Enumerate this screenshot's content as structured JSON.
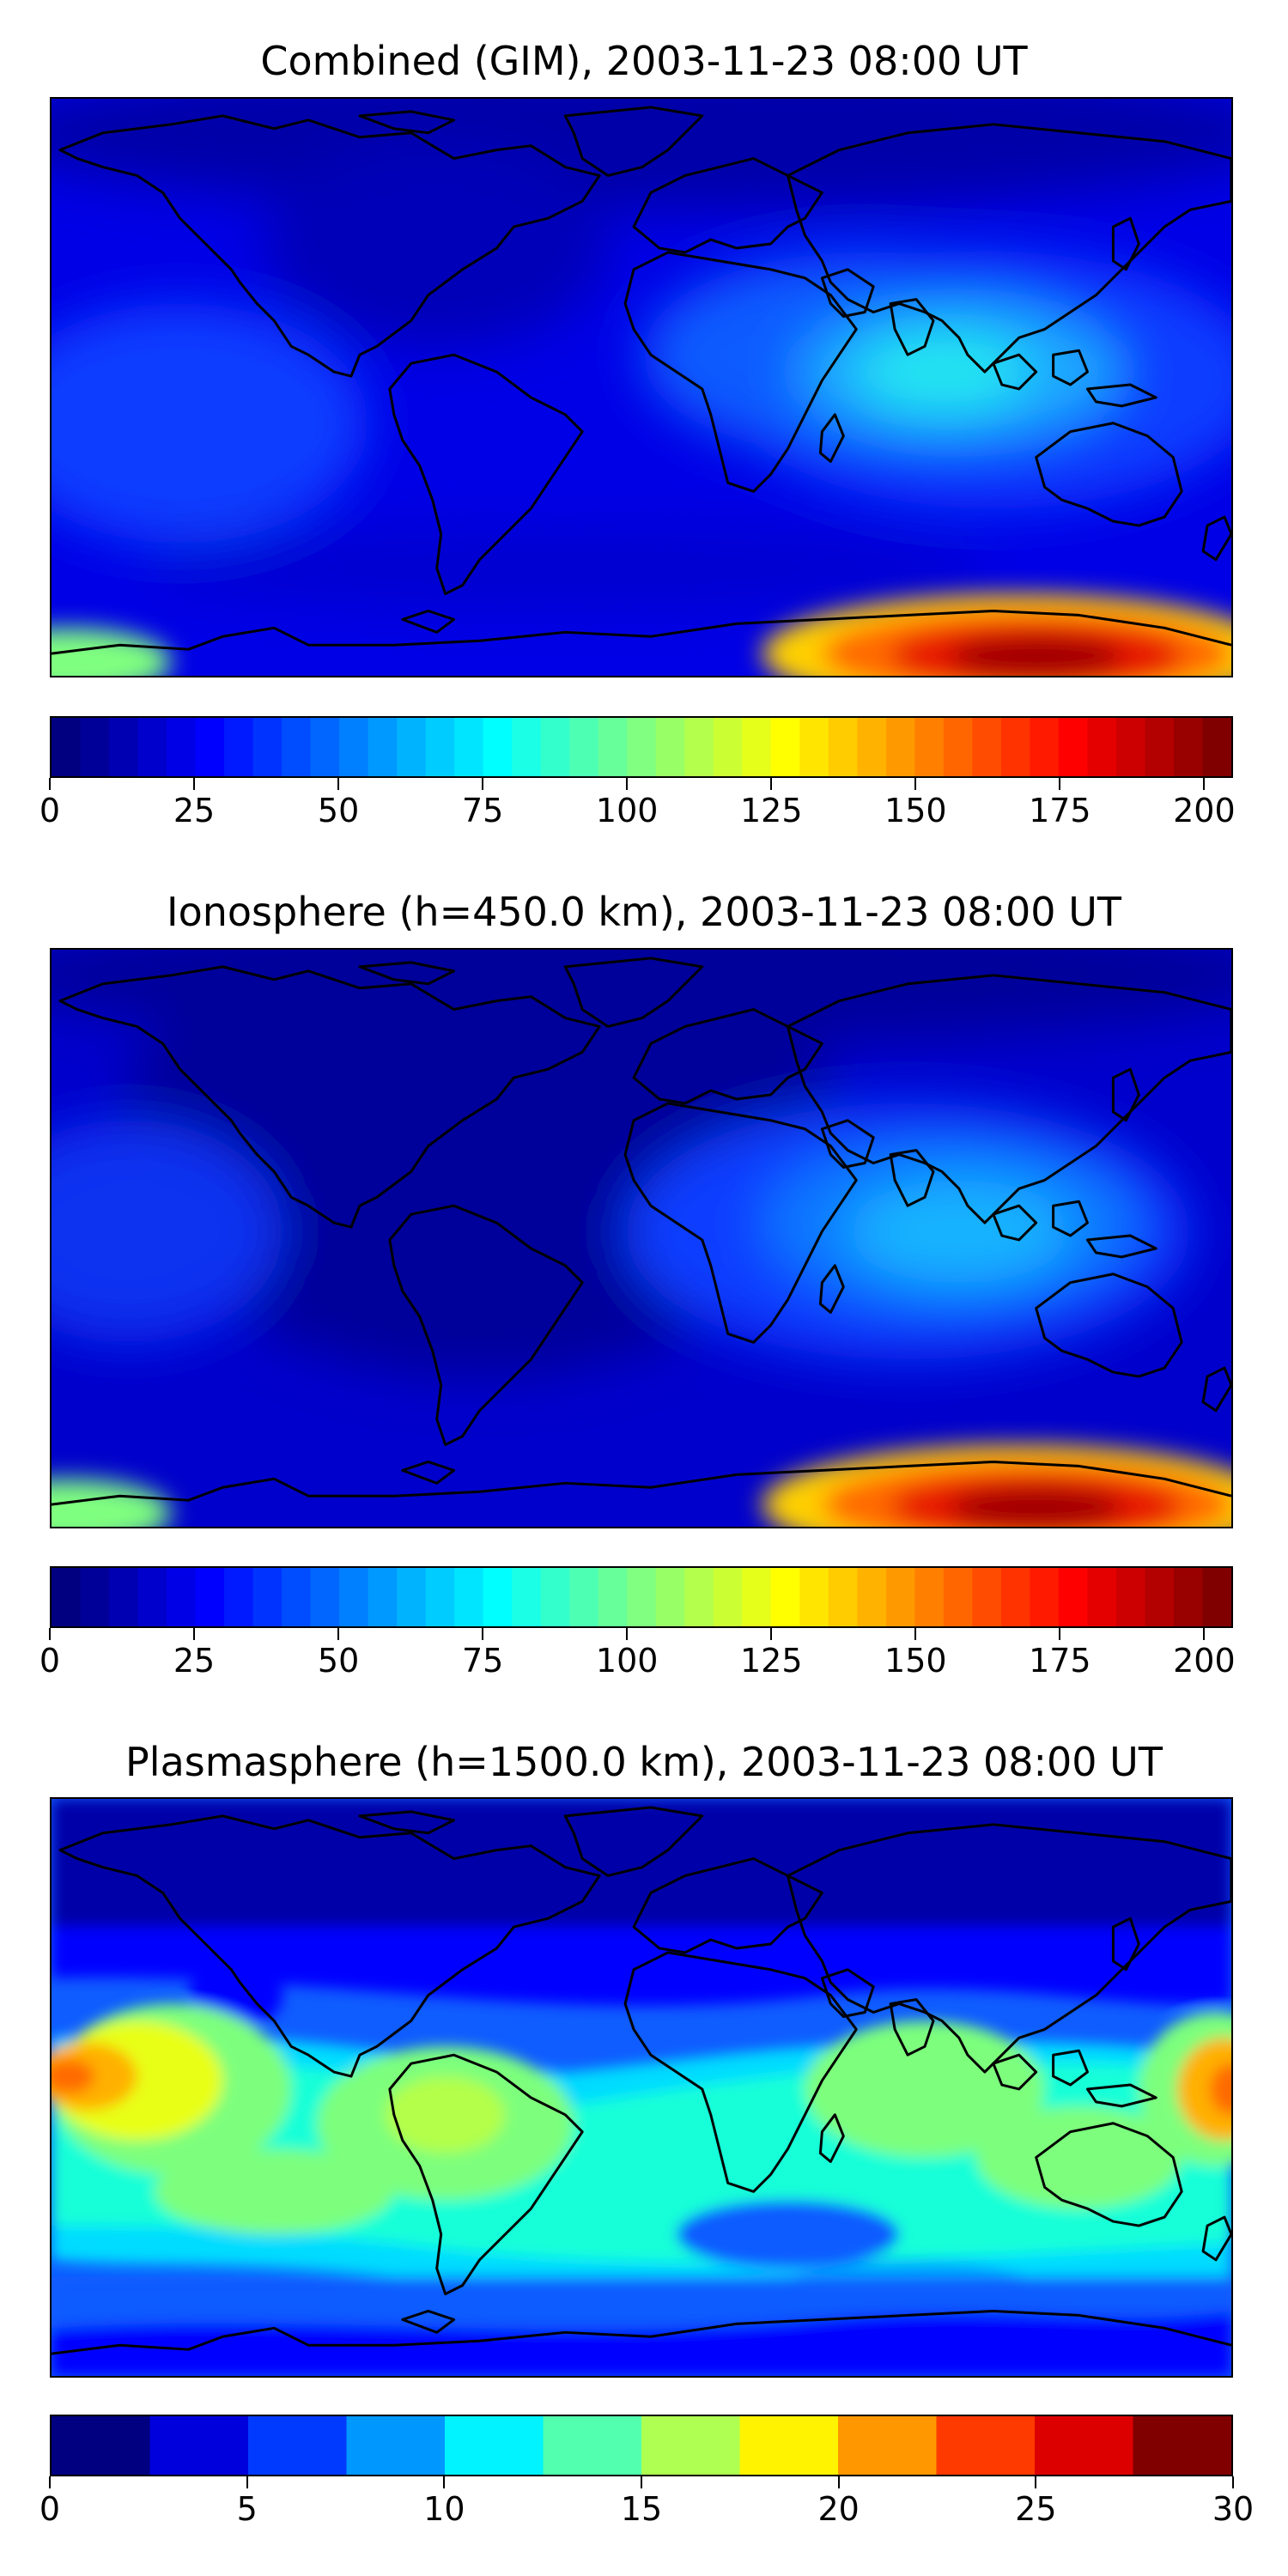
{
  "panels": [
    {
      "title": "Combined (GIM), 2003-11-23 08:00 UT",
      "colorbar": {
        "ticks": [
          "0",
          "25",
          "50",
          "75",
          "100",
          "125",
          "150",
          "175",
          "200"
        ],
        "tick_values": [
          0,
          25,
          50,
          75,
          100,
          125,
          150,
          175,
          200
        ],
        "min": 0,
        "max": 205,
        "levels": 41,
        "colormap": "jet"
      }
    },
    {
      "title": "Ionosphere  (h=450.0 km), 2003-11-23 08:00 UT",
      "colorbar": {
        "ticks": [
          "0",
          "25",
          "50",
          "75",
          "100",
          "125",
          "150",
          "175",
          "200"
        ],
        "tick_values": [
          0,
          25,
          50,
          75,
          100,
          125,
          150,
          175,
          200
        ],
        "min": 0,
        "max": 205,
        "levels": 41,
        "colormap": "jet"
      }
    },
    {
      "title": "Plasmasphere (h=1500.0 km), 2003-11-23 08:00 UT",
      "colorbar": {
        "ticks": [
          "0",
          "5",
          "10",
          "15",
          "20",
          "25",
          "30"
        ],
        "tick_values": [
          0,
          5,
          10,
          15,
          20,
          25,
          30
        ],
        "min": 0,
        "max": 30,
        "levels": 12,
        "colormap": "jet"
      }
    }
  ],
  "colors": {
    "low": "#00008f",
    "mid": "#00ffff",
    "high": "#800000",
    "coastline": "#000000"
  }
}
